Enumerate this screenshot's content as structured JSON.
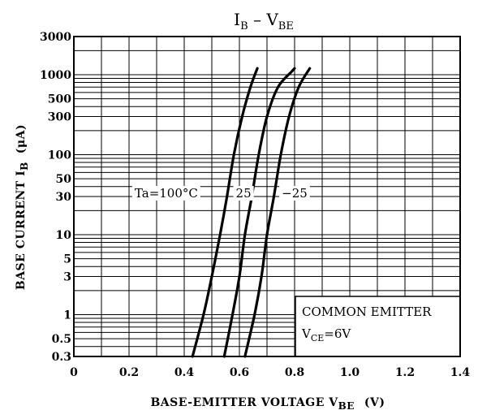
{
  "chart_data": {
    "type": "line",
    "title": "IB – VBE",
    "title_parts": {
      "main": "I",
      "sub": "B",
      "sep": " – V",
      "sub2": "BE"
    },
    "xlabel": "BASE-EMITTER VOLTAGE  VBE  (V)",
    "xlabel_parts": {
      "main": "BASE-EMITTER VOLTAGE  V",
      "sub": "BE",
      "unit": "(V)"
    },
    "ylabel": "BASE CURRENT  IB  (μA)",
    "ylabel_parts": {
      "main": "BASE CURRENT  I",
      "sub": "B",
      "unit": "(μA)"
    },
    "xlim": [
      0,
      1.4
    ],
    "ylim": [
      0.3,
      3000
    ],
    "y_scale": "log",
    "grid": true,
    "x_ticks": [
      {
        "value": 0,
        "label": "0"
      },
      {
        "value": 0.2,
        "label": "0.2"
      },
      {
        "value": 0.4,
        "label": "0.4"
      },
      {
        "value": 0.6,
        "label": "0.6"
      },
      {
        "value": 0.8,
        "label": "0.8"
      },
      {
        "value": 1.0,
        "label": "1.0"
      },
      {
        "value": 1.2,
        "label": "1.2"
      },
      {
        "value": 1.4,
        "label": "1.4"
      }
    ],
    "y_ticks": [
      {
        "value": 0.3,
        "label": "0.3"
      },
      {
        "value": 0.5,
        "label": "0.5"
      },
      {
        "value": 1,
        "label": "1"
      },
      {
        "value": 3,
        "label": "3"
      },
      {
        "value": 5,
        "label": "5"
      },
      {
        "value": 10,
        "label": "10"
      },
      {
        "value": 30,
        "label": "30"
      },
      {
        "value": 50,
        "label": "50"
      },
      {
        "value": 100,
        "label": "100"
      },
      {
        "value": 300,
        "label": "300"
      },
      {
        "value": 500,
        "label": "500"
      },
      {
        "value": 1000,
        "label": "1000"
      },
      {
        "value": 3000,
        "label": "3000"
      }
    ],
    "series": [
      {
        "name": "Ta=100°C",
        "x": [
          0.43,
          0.47,
          0.5,
          0.53,
          0.555,
          0.58,
          0.61,
          0.64,
          0.665
        ],
        "y": [
          0.3,
          1,
          3,
          10,
          30,
          100,
          300,
          700,
          1200
        ]
      },
      {
        "name": "25",
        "x": [
          0.545,
          0.575,
          0.6,
          0.62,
          0.645,
          0.67,
          0.7,
          0.74,
          0.79,
          0.8
        ],
        "y": [
          0.3,
          1,
          3,
          10,
          30,
          100,
          300,
          700,
          1100,
          1200
        ]
      },
      {
        "name": "−25",
        "x": [
          0.62,
          0.655,
          0.68,
          0.7,
          0.725,
          0.75,
          0.78,
          0.815,
          0.855
        ],
        "y": [
          0.3,
          1,
          3,
          10,
          30,
          100,
          300,
          700,
          1200
        ]
      }
    ],
    "annotations": [
      {
        "text": "Ta=100°C",
        "x": 0.335,
        "y": 33
      },
      {
        "text": "25",
        "x": 0.615,
        "y": 33
      },
      {
        "text": "−25",
        "x": 0.8,
        "y": 33
      }
    ],
    "legend": {
      "line1": "COMMON EMITTER",
      "line2_main": "V",
      "line2_sub": "CE",
      "line2_rest": "=6V",
      "text": "COMMON EMITTER  VCE=6V",
      "placement": "bottom-right"
    }
  }
}
